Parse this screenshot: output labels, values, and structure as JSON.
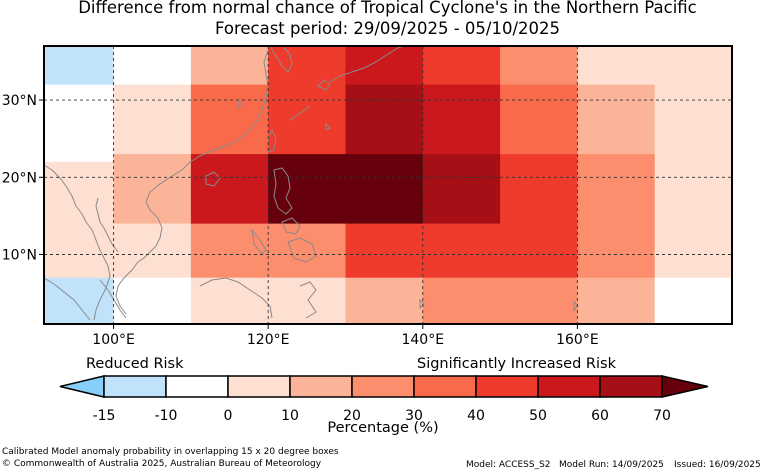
{
  "title": {
    "line1": "Difference from normal chance of Tropical Cyclone's in the Northern Pacific",
    "line2": "Forecast period: 29/09/2025 - 05/10/2025"
  },
  "colorbar": {
    "left_label": "Reduced Risk",
    "right_label": "Significantly Increased Risk",
    "title": "Percentage (%)",
    "ticks": [
      "-15",
      "-10",
      "0",
      "10",
      "20",
      "30",
      "40",
      "50",
      "60",
      "70"
    ],
    "colors": [
      "#87cefa",
      "#c0e3fb",
      "#ffffff",
      "#fee0d2",
      "#fcb499",
      "#fc8e6e",
      "#f96a4b",
      "#ef3b2c",
      "#cb181d",
      "#a50f15",
      "#67000d"
    ]
  },
  "map": {
    "x_ticks": [
      {
        "lon": 100,
        "label": "100°E"
      },
      {
        "lon": 120,
        "label": "120°E"
      },
      {
        "lon": 140,
        "label": "140°E"
      },
      {
        "lon": 160,
        "label": "160°E"
      }
    ],
    "y_ticks": [
      {
        "lat": 30,
        "label": "30°N"
      },
      {
        "lat": 20,
        "label": "20°N"
      },
      {
        "lat": 10,
        "label": "10°N"
      }
    ],
    "lon_range": [
      91,
      180
    ],
    "lat_range": [
      1,
      37
    ],
    "coastline_color": "#8a8a8a",
    "gridlines": "dashed",
    "cells": [
      {
        "lon": [
          91,
          100
        ],
        "lat": [
          32,
          37
        ],
        "value": -15
      },
      {
        "lon": [
          91,
          100
        ],
        "lat": [
          22,
          32
        ],
        "value": -10
      },
      {
        "lon": [
          91,
          100
        ],
        "lat": [
          7,
          22
        ],
        "value": 0
      },
      {
        "lon": [
          91,
          100
        ],
        "lat": [
          1,
          7
        ],
        "value": -15
      },
      {
        "lon": [
          100,
          110
        ],
        "lat": [
          32,
          37
        ],
        "value": -10
      },
      {
        "lon": [
          100,
          110
        ],
        "lat": [
          22,
          32
        ],
        "value": 0
      },
      {
        "lon": [
          100,
          110
        ],
        "lat": [
          14,
          23
        ],
        "value": 10
      },
      {
        "lon": [
          100,
          110
        ],
        "lat": [
          7,
          14
        ],
        "value": 0
      },
      {
        "lon": [
          100,
          110
        ],
        "lat": [
          1,
          7
        ],
        "value": -10
      },
      {
        "lon": [
          110,
          120
        ],
        "lat": [
          32,
          37
        ],
        "value": 10
      },
      {
        "lon": [
          110,
          120
        ],
        "lat": [
          23,
          32
        ],
        "value": 30
      },
      {
        "lon": [
          110,
          120
        ],
        "lat": [
          14,
          23
        ],
        "value": 50
      },
      {
        "lon": [
          110,
          120
        ],
        "lat": [
          7,
          14
        ],
        "value": 20
      },
      {
        "lon": [
          110,
          120
        ],
        "lat": [
          1,
          7
        ],
        "value": 0
      },
      {
        "lon": [
          120,
          130
        ],
        "lat": [
          32,
          37
        ],
        "value": 40
      },
      {
        "lon": [
          120,
          130
        ],
        "lat": [
          23,
          32
        ],
        "value": 40
      },
      {
        "lon": [
          120,
          130
        ],
        "lat": [
          14,
          23
        ],
        "value": 70
      },
      {
        "lon": [
          120,
          130
        ],
        "lat": [
          7,
          14
        ],
        "value": 20
      },
      {
        "lon": [
          120,
          130
        ],
        "lat": [
          1,
          7
        ],
        "value": 0
      },
      {
        "lon": [
          130,
          140
        ],
        "lat": [
          32,
          37
        ],
        "value": 50
      },
      {
        "lon": [
          130,
          140
        ],
        "lat": [
          23,
          32
        ],
        "value": 60
      },
      {
        "lon": [
          130,
          140
        ],
        "lat": [
          14,
          23
        ],
        "value": 70
      },
      {
        "lon": [
          130,
          140
        ],
        "lat": [
          7,
          14
        ],
        "value": 40
      },
      {
        "lon": [
          130,
          140
        ],
        "lat": [
          1,
          7
        ],
        "value": 10
      },
      {
        "lon": [
          140,
          150
        ],
        "lat": [
          32,
          37
        ],
        "value": 40
      },
      {
        "lon": [
          140,
          150
        ],
        "lat": [
          23,
          32
        ],
        "value": 50
      },
      {
        "lon": [
          140,
          150
        ],
        "lat": [
          14,
          23
        ],
        "value": 60
      },
      {
        "lon": [
          140,
          150
        ],
        "lat": [
          7,
          14
        ],
        "value": 40
      },
      {
        "lon": [
          140,
          150
        ],
        "lat": [
          1,
          7
        ],
        "value": 20
      },
      {
        "lon": [
          150,
          160
        ],
        "lat": [
          32,
          37
        ],
        "value": 20
      },
      {
        "lon": [
          150,
          160
        ],
        "lat": [
          23,
          32
        ],
        "value": 30
      },
      {
        "lon": [
          150,
          160
        ],
        "lat": [
          7,
          23
        ],
        "value": 40
      },
      {
        "lon": [
          150,
          160
        ],
        "lat": [
          1,
          7
        ],
        "value": 20
      },
      {
        "lon": [
          160,
          170
        ],
        "lat": [
          32,
          37
        ],
        "value": 0
      },
      {
        "lon": [
          160,
          170
        ],
        "lat": [
          23,
          32
        ],
        "value": 10
      },
      {
        "lon": [
          160,
          170
        ],
        "lat": [
          7,
          23
        ],
        "value": 20
      },
      {
        "lon": [
          160,
          170
        ],
        "lat": [
          1,
          7
        ],
        "value": 10
      },
      {
        "lon": [
          170,
          180
        ],
        "lat": [
          7,
          37
        ],
        "value": 0
      },
      {
        "lon": [
          170,
          180
        ],
        "lat": [
          1,
          7
        ],
        "value": -10
      }
    ]
  },
  "footer": {
    "description": "Calibrated Model anomaly probability in overlapping 15 x 20 degree boxes",
    "copyright": "© Commonwealth of Australia 2025, Australian Bureau of Meteorology",
    "model": "Model: ACCESS_S2",
    "model_run": "Model Run: 14/09/2025",
    "issued": "Issued: 16/09/2025"
  }
}
